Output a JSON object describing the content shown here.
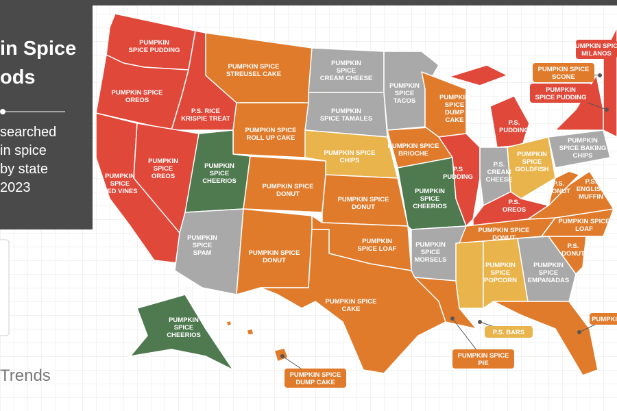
{
  "header": {
    "title_lines": [
      "in Spice",
      "ods"
    ],
    "subtitle_lines": [
      "searched",
      "in spice",
      "by state",
      "2023"
    ]
  },
  "logo": "Trends",
  "labels": [
    {
      "lines": [
        "PUMPKIN",
        "SPICE PUDDING"
      ]
    },
    {
      "lines": [
        "PUMPKIN SPICE",
        "OREOS"
      ]
    },
    {
      "lines": [
        "PUMPKIN",
        "SPICE",
        "RED VINES"
      ]
    },
    {
      "lines": [
        "PUMPKIN",
        "SPICE",
        "OREOS"
      ]
    },
    {
      "lines": [
        "P.S. RICE",
        "KRISPIE TREAT"
      ]
    },
    {
      "lines": [
        "PUMPKIN SPICE",
        "STREUSEL CAKE"
      ]
    },
    {
      "lines": [
        "PUMPKIN SPICE",
        "ROLL UP CAKE"
      ]
    },
    {
      "lines": [
        "PUMPKIN",
        "SPICE",
        "CHEERIOS"
      ]
    },
    {
      "lines": [
        "PUMPKIN SPICE",
        "DONUT"
      ]
    },
    {
      "lines": [
        "PUMPKIN",
        "SPICE",
        "SPAM"
      ]
    },
    {
      "lines": [
        "PUMPKIN SPICE",
        "DONUT"
      ]
    },
    {
      "lines": [
        "PUMPKIN",
        "SPICE",
        "CREAM CHEESE"
      ]
    },
    {
      "lines": [
        "PUMPKIN",
        "SPICE TAMALES"
      ]
    },
    {
      "lines": [
        "PUMPKIN SPICE",
        "CHIPS"
      ]
    },
    {
      "lines": [
        "PUMPKIN SPICE",
        "DONUT"
      ]
    },
    {
      "lines": [
        "PUMPKIN",
        "SPICE LOAF"
      ]
    },
    {
      "lines": [
        "PUMPKIN SPICE",
        "CAKE"
      ]
    },
    {
      "lines": [
        "PUMPKIN",
        "SPICE",
        "TACOS"
      ]
    },
    {
      "lines": [
        "PUMPKIN SPICE",
        "BRIOCHE"
      ]
    },
    {
      "lines": [
        "PUMPKIN",
        "SPICE",
        "CHEERIOS"
      ]
    },
    {
      "lines": [
        "PUMPKIN",
        "SPICE",
        "MORSELS"
      ]
    },
    {
      "lines": [
        "PUMPKIN",
        "SPICE",
        "DUMP",
        "CAKE"
      ]
    },
    {
      "lines": [
        "P.S",
        "PUDDING"
      ]
    },
    {
      "lines": [
        "P.S.",
        "PUDDING"
      ]
    },
    {
      "lines": [
        "P.S.",
        "CREAM",
        "CHEESE"
      ]
    },
    {
      "lines": [
        "PUMPKIN",
        "SPICE",
        "GOLDFISH"
      ]
    },
    {
      "lines": [
        "P.S.",
        "OREOS"
      ]
    },
    {
      "lines": [
        "PUMPKIN SPICE",
        "DONUT"
      ]
    },
    {
      "lines": [
        "PUMPKIN",
        "SPICE",
        "POPCORN"
      ]
    },
    {
      "lines": [
        "PUMPKIN",
        "SPICE",
        "EMPANADAS"
      ]
    },
    {
      "lines": [
        "P.S.",
        "DONUT"
      ]
    },
    {
      "lines": [
        "PUMPKIN SPICE",
        "LOAF"
      ]
    },
    {
      "lines": [
        "P.S.",
        "ENGLISH",
        "MUFFIN"
      ]
    },
    {
      "lines": [
        "P.S.",
        "DONUT"
      ]
    },
    {
      "lines": [
        "PUMPKIN",
        "SPICE BAKING",
        "CHIPS"
      ]
    },
    {
      "lines": [
        "PUMPKIN",
        "SPICE",
        "CHEERIOS"
      ]
    }
  ],
  "callouts": [
    {
      "lines": [
        "PUMPKIN SPICE",
        "MILANOS"
      ]
    },
    {
      "lines": [
        "PUMPKIN SPICE",
        "SCONE"
      ]
    },
    {
      "lines": [
        "PUMPKIN",
        "SPICE PUDDING"
      ]
    },
    {
      "lines": [
        "P.S. BARS"
      ]
    },
    {
      "lines": [
        "PUMPKIN SPICE",
        "PIE"
      ]
    },
    {
      "lines": [
        "PUMPKIN SPICE",
        "DUMP CAKE"
      ]
    },
    {
      "lines": [
        "PUMPKIN"
      ]
    }
  ]
}
